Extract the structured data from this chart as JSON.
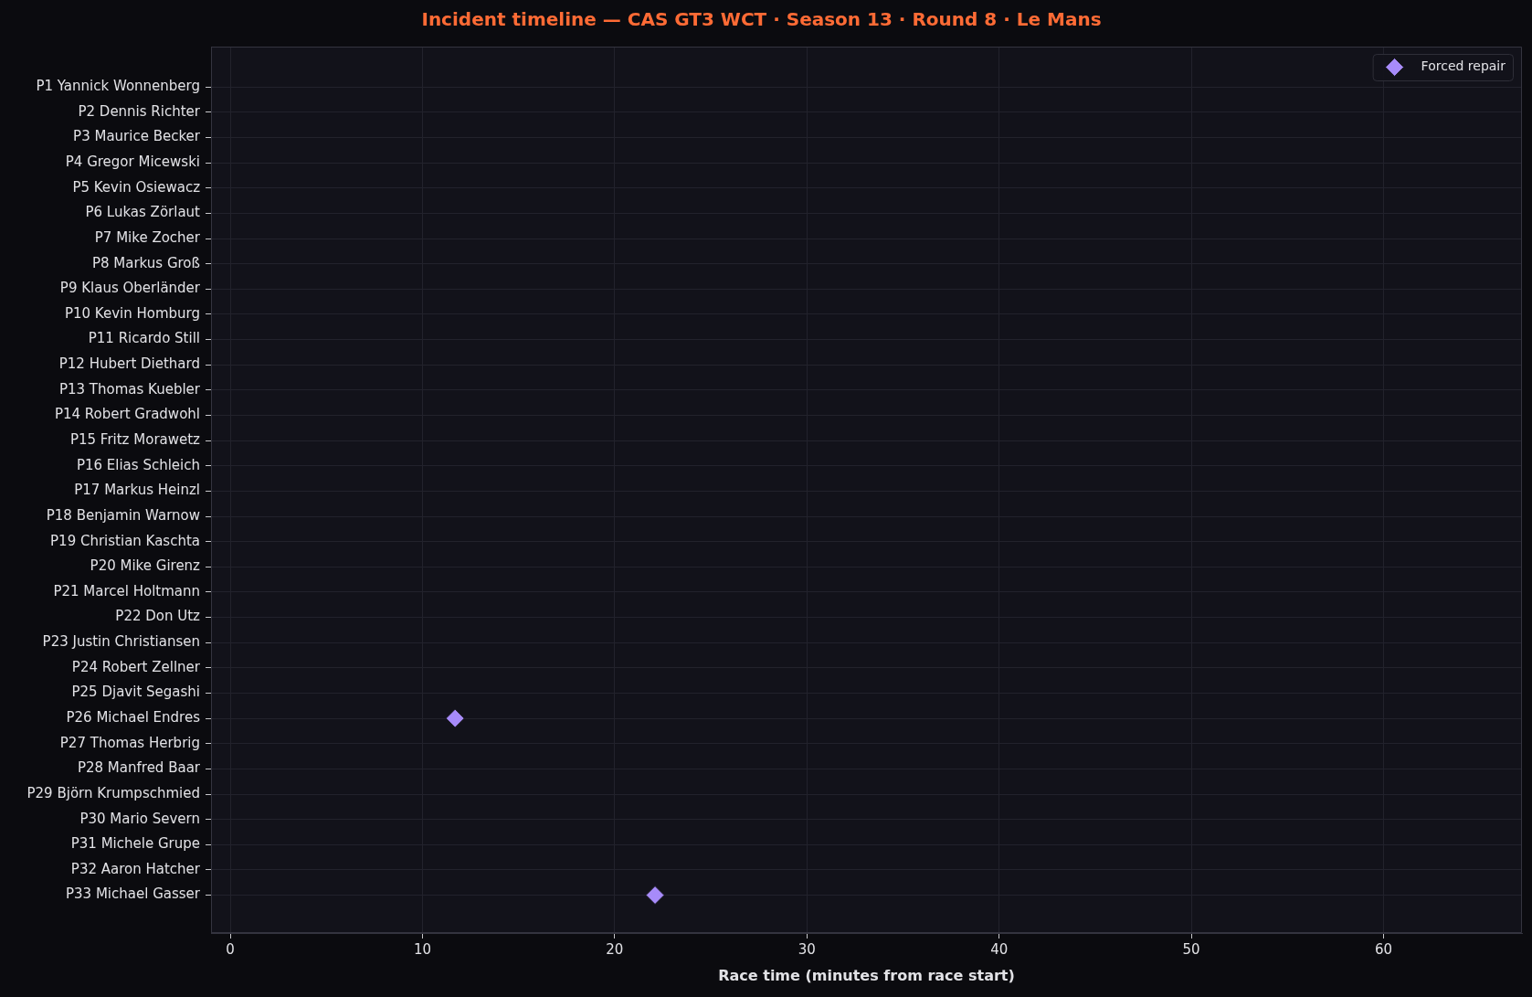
{
  "chart_data": {
    "type": "scatter",
    "title": "Incident timeline — CAS GT3 WCT · Season 13 · Round 8 · Le Mans",
    "xlabel": "Race time (minutes from race start)",
    "orientation": "horizontal",
    "categories": [
      "P1 Yannick Wonnenberg",
      "P2 Dennis Richter",
      "P3 Maurice Becker",
      "P4 Gregor Micewski",
      "P5 Kevin Osiewacz",
      "P6 Lukas Zörlaut",
      "P7 Mike Zocher",
      "P8 Markus Groß",
      "P9 Klaus Oberländer",
      "P10 Kevin Homburg",
      "P11 Ricardo Still",
      "P12 Hubert Diethard",
      "P13 Thomas Kuebler",
      "P14 Robert Gradwohl",
      "P15 Fritz Morawetz",
      "P16 Elias Schleich",
      "P17 Markus Heinzl",
      "P18 Benjamin Warnow",
      "P19 Christian Kaschta",
      "P20 Mike Girenz",
      "P21 Marcel Holtmann",
      "P22 Don Utz",
      "P23 Justin Christiansen",
      "P24 Robert Zellner",
      "P25 Djavit Segashi",
      "P26 Michael Endres",
      "P27 Thomas Herbrig",
      "P28 Manfred Baar",
      "P29 Björn Krumpschmied",
      "P30 Mario Severn",
      "P31 Michele Grupe",
      "P32 Aaron Hatcher",
      "P33 Michael Gasser"
    ],
    "series": [
      {
        "name": "Forced repair",
        "color": "#a78bfa",
        "values": [
          null,
          null,
          null,
          null,
          null,
          null,
          null,
          null,
          null,
          null,
          null,
          null,
          null,
          null,
          null,
          null,
          null,
          null,
          null,
          null,
          null,
          null,
          null,
          null,
          null,
          11.7,
          null,
          null,
          null,
          null,
          null,
          null,
          22.1
        ]
      }
    ],
    "xlim": [
      -1,
      67.2
    ],
    "xticks": [
      0,
      10,
      20,
      30,
      40,
      50,
      60
    ],
    "grid": true,
    "legend": "top right",
    "marker": "diamond"
  }
}
